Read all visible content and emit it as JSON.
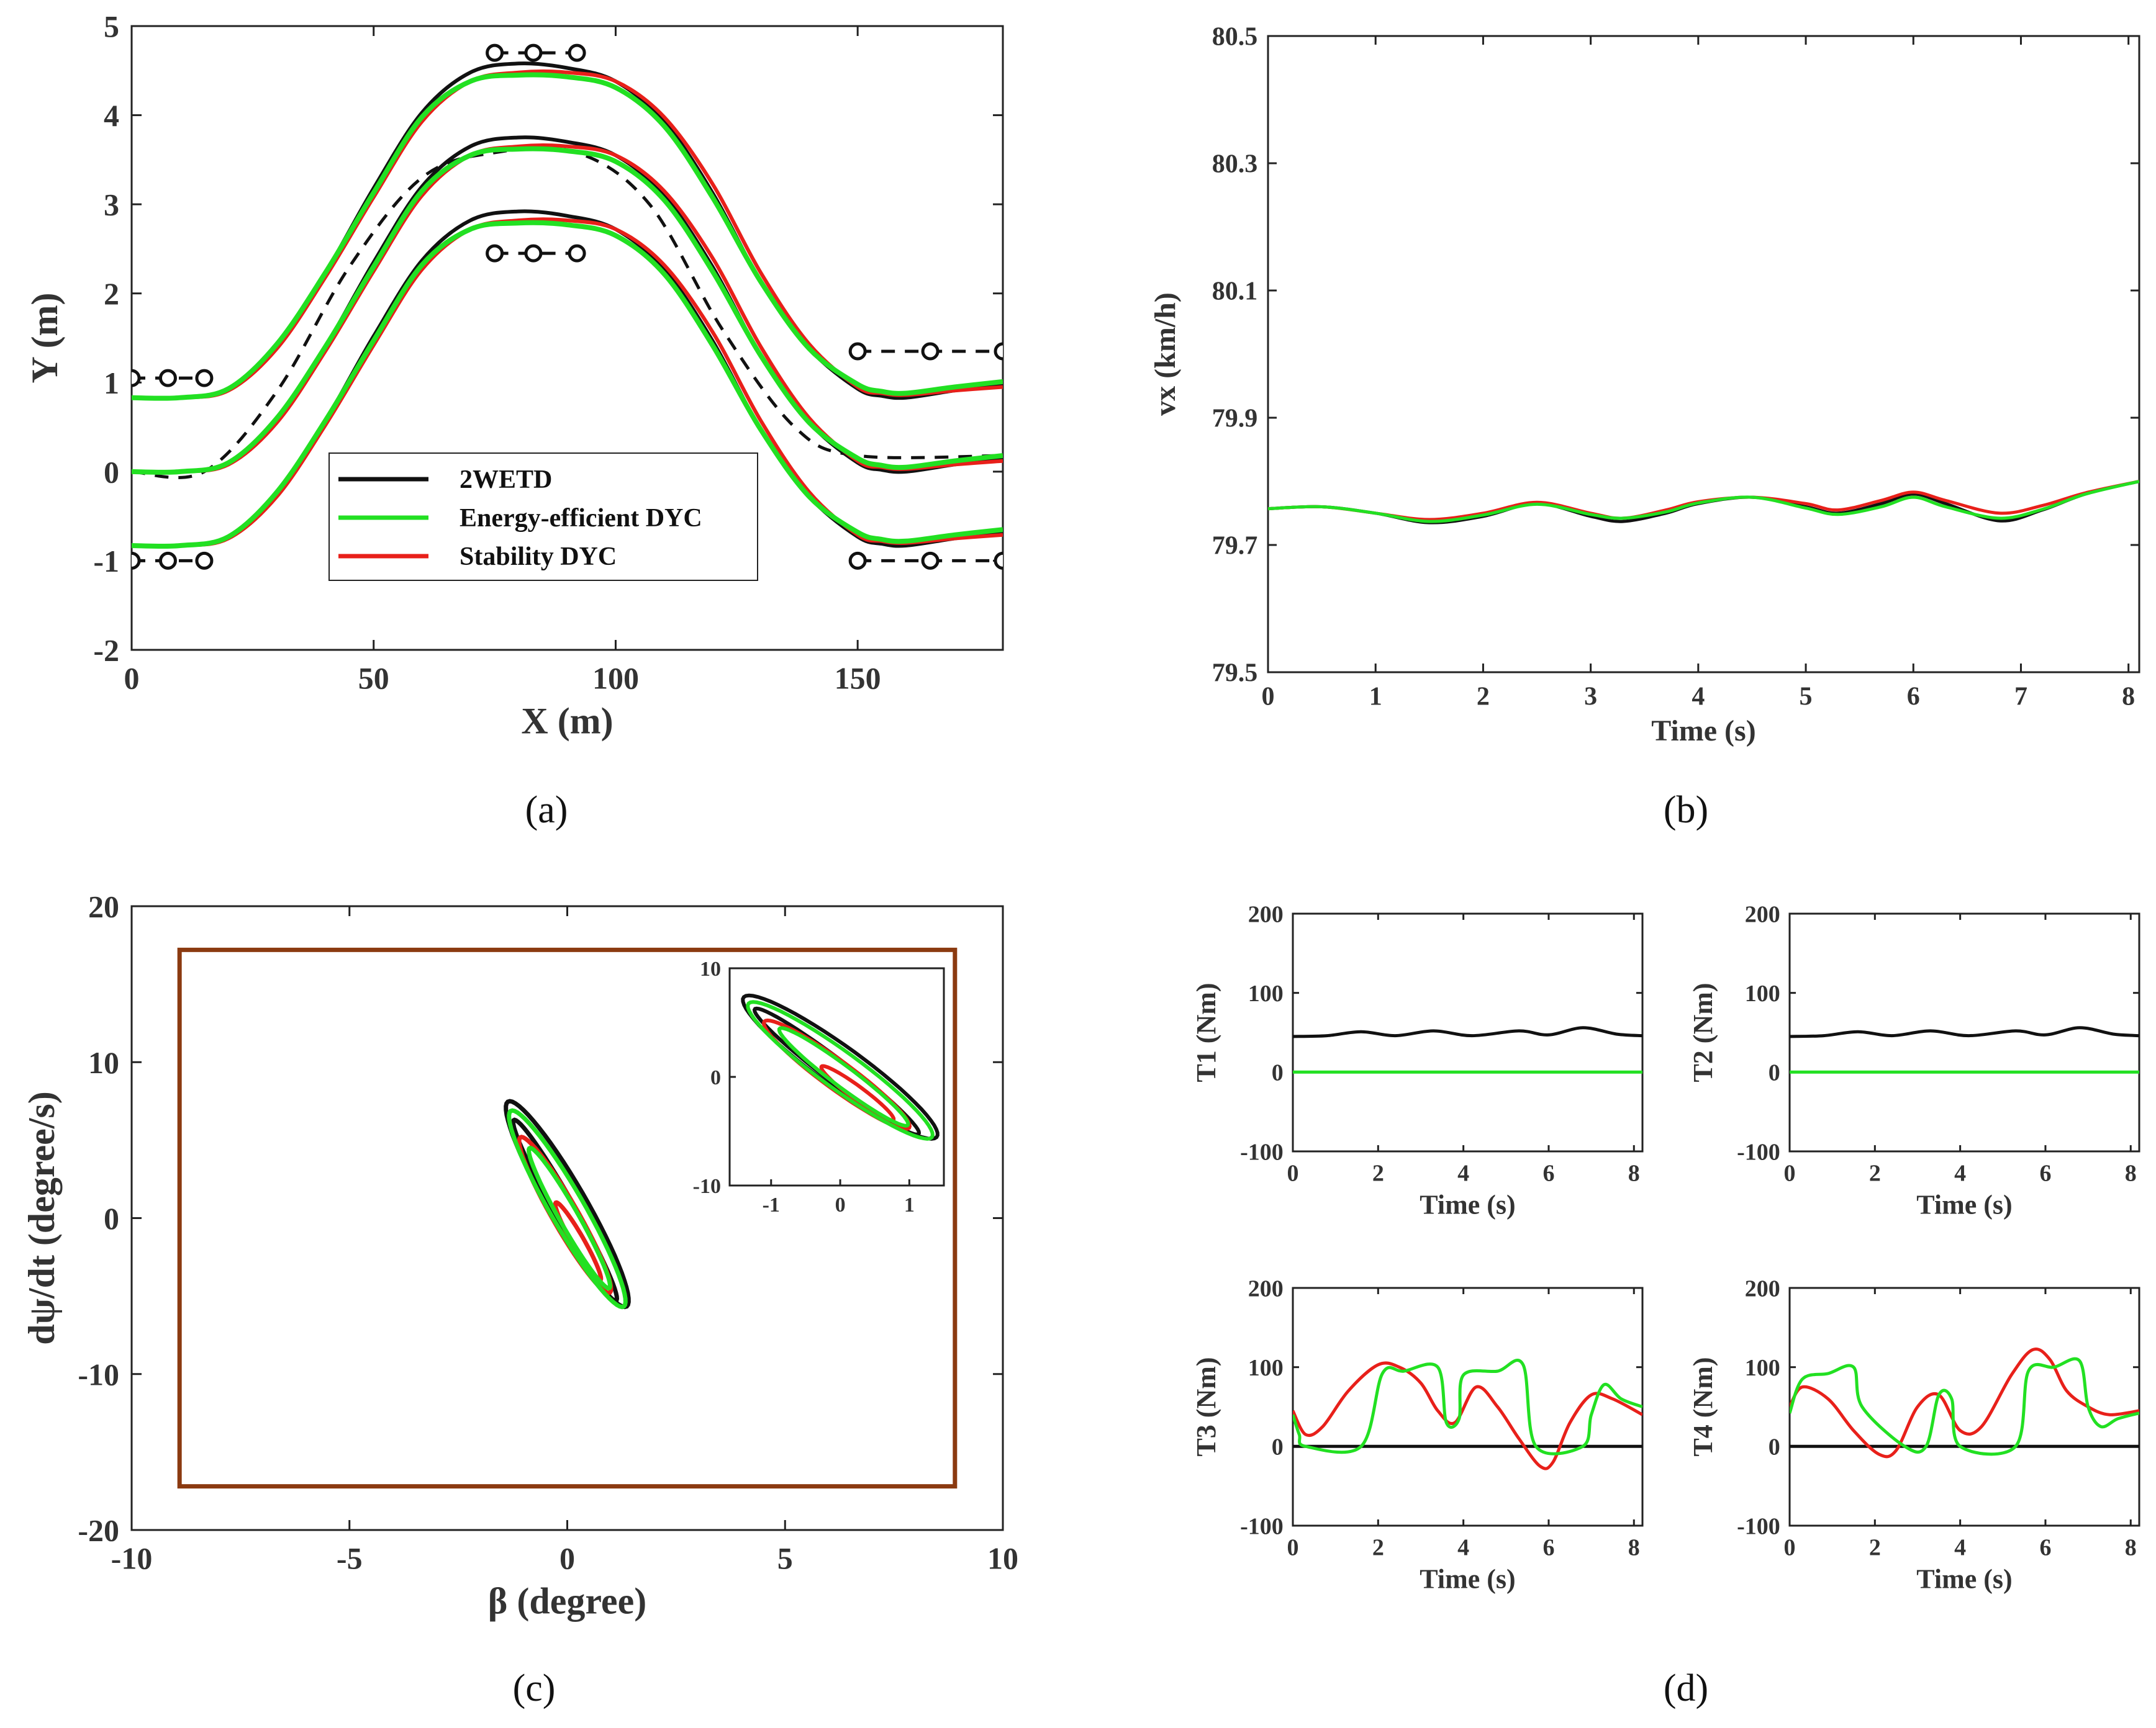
{
  "colors": {
    "black": "#111111",
    "green": "#22e022",
    "red": "#e8201a",
    "brown": "#8b3a10",
    "axis": "#222222"
  },
  "captions": {
    "a": "(a)",
    "b": "(b)",
    "c": "(c)",
    "d": "(d)"
  },
  "chart_data": [
    {
      "id": "a",
      "type": "line",
      "xlabel": "X (m)",
      "ylabel": "Y (m)",
      "xlim": [
        0,
        180
      ],
      "ylim": [
        -2,
        5
      ],
      "xticks": [
        0,
        50,
        100,
        150
      ],
      "yticks": [
        -2,
        -1,
        0,
        1,
        2,
        3,
        4,
        5
      ],
      "legend": {
        "position": "inside-bottom-center",
        "entries": [
          {
            "label": "2WETD",
            "color": "#111111"
          },
          {
            "label": "Energy-efficient DYC",
            "color": "#22e022"
          },
          {
            "label": "Stability DYC",
            "color": "#e8201a"
          }
        ]
      },
      "cones": {
        "left_upper": {
          "x": [
            0,
            7.5,
            15
          ],
          "y": 1.05
        },
        "left_lower": {
          "x": [
            0,
            7.5,
            15
          ],
          "y": -1.0
        },
        "top_upper": {
          "x": [
            75,
            83,
            92
          ],
          "y": 4.7
        },
        "top_lower": {
          "x": [
            75,
            83,
            92
          ],
          "y": 2.45
        },
        "right_upper": {
          "x": [
            150,
            165,
            180
          ],
          "y": 1.35
        },
        "right_lower": {
          "x": [
            150,
            165,
            180
          ],
          "y": -1.0
        }
      },
      "reference_path": {
        "x": [
          0,
          15,
          30,
          45,
          60,
          75,
          92,
          107,
          122,
          137,
          150,
          180
        ],
        "y": [
          0,
          0,
          0.9,
          2.3,
          3.3,
          3.58,
          3.58,
          3.0,
          1.6,
          0.5,
          0.18,
          0.18
        ]
      },
      "series": [
        {
          "name": "2WETD",
          "role": "center",
          "x": [
            0,
            10,
            20,
            30,
            40,
            50,
            60,
            70,
            80,
            90,
            100,
            110,
            120,
            130,
            140,
            150,
            155,
            160,
            170,
            180
          ],
          "y": [
            0,
            0,
            0.1,
            0.6,
            1.4,
            2.35,
            3.2,
            3.65,
            3.75,
            3.7,
            3.55,
            3.1,
            2.3,
            1.3,
            0.55,
            0.1,
            0.02,
            0.0,
            0.08,
            0.15
          ]
        },
        {
          "name": "Energy-efficient DYC",
          "role": "center",
          "x": [
            0,
            10,
            20,
            30,
            40,
            50,
            60,
            70,
            80,
            90,
            100,
            110,
            120,
            130,
            140,
            150,
            155,
            160,
            170,
            180
          ],
          "y": [
            0,
            0,
            0.1,
            0.6,
            1.4,
            2.3,
            3.15,
            3.55,
            3.62,
            3.6,
            3.48,
            3.05,
            2.25,
            1.3,
            0.55,
            0.15,
            0.07,
            0.05,
            0.12,
            0.18
          ]
        },
        {
          "name": "Stability DYC",
          "role": "center",
          "x": [
            0,
            10,
            20,
            30,
            40,
            50,
            60,
            70,
            80,
            90,
            100,
            110,
            120,
            130,
            140,
            150,
            155,
            160,
            170,
            180
          ],
          "y": [
            0,
            0,
            0.08,
            0.55,
            1.35,
            2.25,
            3.1,
            3.55,
            3.65,
            3.65,
            3.55,
            3.15,
            2.4,
            1.4,
            0.6,
            0.12,
            0.05,
            0.03,
            0.08,
            0.12
          ]
        }
      ],
      "envelope_offset": 0.83
    },
    {
      "id": "b",
      "type": "line",
      "xlabel": "Time (s)",
      "ylabel": "vx (km/h)",
      "xlim": [
        0,
        8.1
      ],
      "ylim": [
        79.5,
        80.5
      ],
      "xticks": [
        0,
        1,
        2,
        3,
        4,
        5,
        6,
        7,
        8
      ],
      "yticks": [
        79.5,
        79.7,
        79.9,
        80.1,
        80.3,
        80.5
      ],
      "series": [
        {
          "name": "2WETD",
          "x": [
            0,
            0.5,
            1.0,
            1.5,
            2.0,
            2.5,
            3.0,
            3.3,
            3.7,
            4.0,
            4.5,
            5.0,
            5.3,
            5.7,
            6.0,
            6.3,
            6.8,
            7.2,
            7.6,
            8.1
          ],
          "y": [
            79.757,
            79.76,
            79.75,
            79.735,
            79.745,
            79.765,
            79.745,
            79.737,
            79.75,
            79.765,
            79.775,
            79.76,
            79.75,
            79.765,
            79.78,
            79.765,
            79.738,
            79.755,
            79.78,
            79.8
          ]
        },
        {
          "name": "Stability DYC",
          "x": [
            0,
            0.5,
            1.0,
            1.5,
            2.0,
            2.5,
            3.0,
            3.3,
            3.7,
            4.0,
            4.5,
            5.0,
            5.3,
            5.7,
            6.0,
            6.3,
            6.8,
            7.2,
            7.6,
            8.1
          ],
          "y": [
            79.757,
            79.76,
            79.75,
            79.74,
            79.75,
            79.767,
            79.75,
            79.742,
            79.755,
            79.768,
            79.775,
            79.765,
            79.755,
            79.77,
            79.783,
            79.77,
            79.75,
            79.762,
            79.782,
            79.8
          ]
        },
        {
          "name": "Energy-efficient DYC",
          "x": [
            0,
            0.5,
            1.0,
            1.5,
            2.0,
            2.5,
            3.0,
            3.3,
            3.7,
            4.0,
            4.5,
            5.0,
            5.3,
            5.7,
            6.0,
            6.3,
            6.8,
            7.2,
            7.6,
            8.1
          ],
          "y": [
            79.757,
            79.76,
            79.75,
            79.737,
            79.747,
            79.764,
            79.748,
            79.742,
            79.752,
            79.766,
            79.775,
            79.758,
            79.748,
            79.76,
            79.775,
            79.76,
            79.742,
            79.756,
            79.78,
            79.8
          ]
        }
      ]
    },
    {
      "id": "c",
      "type": "scatter",
      "xlabel": "β (degree)",
      "ylabel": "dψ/dt (degree/s)",
      "xlim": [
        -10,
        10
      ],
      "ylim": [
        -20,
        20
      ],
      "xticks": [
        -10,
        -5,
        0,
        5,
        10
      ],
      "yticks": [
        -20,
        -10,
        0,
        10,
        20
      ],
      "stability_box": {
        "x": [
          -8.9,
          8.9
        ],
        "y": [
          -17.2,
          17.2
        ]
      },
      "inset": {
        "xlim": [
          -1.6,
          1.5
        ],
        "ylim": [
          -10,
          10
        ],
        "xticks": [
          -1,
          0,
          1
        ],
        "yticks": [
          -10,
          0,
          10
        ]
      },
      "series": [
        {
          "name": "2WETD",
          "loops": [
            {
              "cx": 0.0,
              "cy": 0.9,
              "a": 1.1,
              "b": 6.6,
              "tilt": 0.08
            },
            {
              "cx": -0.05,
              "cy": 0.5,
              "a": 0.6,
              "b": 5.8,
              "tilt": 0.08
            }
          ]
        },
        {
          "name": "Energy-efficient DYC",
          "loops": [
            {
              "cx": 0.0,
              "cy": 0.6,
              "a": 1.0,
              "b": 6.3,
              "tilt": 0.08
            },
            {
              "cx": 0.05,
              "cy": 0.0,
              "a": 0.55,
              "b": 4.5,
              "tilt": 0.08
            }
          ]
        },
        {
          "name": "Stability DYC",
          "loops": [
            {
              "cx": -0.05,
              "cy": 0.2,
              "a": 0.75,
              "b": 5.0,
              "tilt": 0.08
            },
            {
              "cx": 0.25,
              "cy": -1.5,
              "a": 0.35,
              "b": 2.5,
              "tilt": 0.08
            }
          ]
        }
      ]
    },
    {
      "id": "d1",
      "type": "line",
      "xlabel": "Time (s)",
      "ylabel": "T1 (Nm)",
      "xlim": [
        0,
        8.2
      ],
      "ylim": [
        -100,
        200
      ],
      "xticks": [
        0,
        2,
        4,
        6,
        8
      ],
      "yticks": [
        -100,
        0,
        100,
        200
      ],
      "series": [
        {
          "name": "2WETD",
          "x": [
            0,
            0.8,
            1.6,
            2.4,
            3.3,
            4.2,
            5.3,
            6.0,
            6.8,
            7.6,
            8.2
          ],
          "y": [
            45,
            46,
            51,
            46,
            52,
            46,
            52,
            47,
            56,
            48,
            46
          ]
        },
        {
          "name": "Energy-efficient DYC",
          "x": [
            0,
            8.2
          ],
          "y": [
            0,
            0
          ]
        }
      ]
    },
    {
      "id": "d2",
      "type": "line",
      "xlabel": "Time (s)",
      "ylabel": "T2 (Nm)",
      "xlim": [
        0,
        8.2
      ],
      "ylim": [
        -100,
        200
      ],
      "xticks": [
        0,
        2,
        4,
        6,
        8
      ],
      "yticks": [
        -100,
        0,
        100,
        200
      ],
      "series": [
        {
          "name": "2WETD",
          "x": [
            0,
            0.8,
            1.6,
            2.4,
            3.3,
            4.2,
            5.3,
            6.0,
            6.8,
            7.6,
            8.2
          ],
          "y": [
            45,
            46,
            51,
            46,
            52,
            46,
            52,
            47,
            56,
            48,
            46
          ]
        },
        {
          "name": "Energy-efficient DYC",
          "x": [
            0,
            8.2
          ],
          "y": [
            0,
            0
          ]
        }
      ]
    },
    {
      "id": "d3",
      "type": "line",
      "xlabel": "Time (s)",
      "ylabel": "T3 (Nm)",
      "xlim": [
        0,
        8.2
      ],
      "ylim": [
        -100,
        200
      ],
      "xticks": [
        0,
        2,
        4,
        6,
        8
      ],
      "yticks": [
        -100,
        0,
        100,
        200
      ],
      "series": [
        {
          "name": "2WETD",
          "x": [
            0,
            8.2
          ],
          "y": [
            0,
            0
          ]
        },
        {
          "name": "Stability DYC",
          "x": [
            0,
            0.3,
            0.7,
            1.3,
            2.0,
            2.5,
            3.0,
            3.4,
            3.8,
            4.3,
            4.8,
            5.3,
            5.8,
            6.1,
            6.5,
            7.0,
            7.5,
            8.2
          ],
          "y": [
            45,
            15,
            25,
            70,
            103,
            100,
            80,
            45,
            30,
            75,
            50,
            10,
            -25,
            -20,
            30,
            65,
            60,
            40
          ]
        },
        {
          "name": "Energy-efficient DYC",
          "x": [
            0,
            0.15,
            0.3,
            1.6,
            2.1,
            2.6,
            3.4,
            3.6,
            3.9,
            4.0,
            4.8,
            5.4,
            5.7,
            6.8,
            7.0,
            7.3,
            7.7,
            8.2
          ],
          "y": [
            40,
            15,
            0,
            0,
            92,
            95,
            100,
            30,
            35,
            90,
            95,
            103,
            0,
            0,
            40,
            78,
            60,
            50
          ]
        }
      ]
    },
    {
      "id": "d4",
      "type": "line",
      "xlabel": "Time (s)",
      "ylabel": "T4 (Nm)",
      "xlim": [
        0,
        8.2
      ],
      "ylim": [
        -100,
        200
      ],
      "xticks": [
        0,
        2,
        4,
        6,
        8
      ],
      "yticks": [
        -100,
        0,
        100,
        200
      ],
      "series": [
        {
          "name": "2WETD",
          "x": [
            0,
            8.2
          ],
          "y": [
            0,
            0
          ]
        },
        {
          "name": "Stability DYC",
          "x": [
            0,
            0.3,
            0.9,
            1.5,
            2.1,
            2.5,
            3.0,
            3.5,
            4.0,
            4.5,
            5.2,
            5.7,
            6.1,
            6.5,
            7.0,
            7.5,
            8.2
          ],
          "y": [
            50,
            75,
            60,
            20,
            -10,
            -5,
            50,
            65,
            20,
            25,
            90,
            122,
            110,
            70,
            50,
            40,
            45
          ]
        },
        {
          "name": "Energy-efficient DYC",
          "x": [
            0,
            0.3,
            0.9,
            1.5,
            1.7,
            2.7,
            3.2,
            3.5,
            3.8,
            4.0,
            5.3,
            5.6,
            6.2,
            6.8,
            7.0,
            7.3,
            7.7,
            8.2
          ],
          "y": [
            42,
            85,
            92,
            100,
            50,
            0,
            0,
            65,
            60,
            0,
            0,
            95,
            100,
            108,
            50,
            25,
            35,
            42
          ]
        }
      ]
    }
  ]
}
